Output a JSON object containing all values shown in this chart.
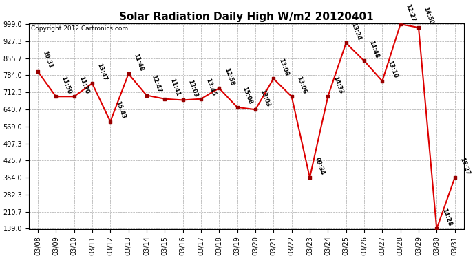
{
  "title": "Solar Radiation Daily High W/m2 20120401",
  "copyright": "Copyright 2012 Cartronics.com",
  "dates": [
    "03/08",
    "03/09",
    "03/10",
    "03/11",
    "03/12",
    "03/13",
    "03/14",
    "03/15",
    "03/16",
    "03/17",
    "03/18",
    "03/19",
    "03/20",
    "03/21",
    "03/22",
    "03/23",
    "03/24",
    "03/25",
    "03/26",
    "03/27",
    "03/28",
    "03/29",
    "03/30",
    "03/31"
  ],
  "values": [
    800,
    695,
    695,
    750,
    590,
    790,
    700,
    685,
    680,
    685,
    730,
    650,
    640,
    770,
    695,
    354,
    695,
    920,
    845,
    760,
    999,
    985,
    139,
    354
  ],
  "labels": [
    "10:31",
    "11:50",
    "11:30",
    "13:47",
    "15:43",
    "11:48",
    "12:47",
    "11:41",
    "13:03",
    "13:45",
    "12:58",
    "15:08",
    "13:03",
    "13:08",
    "13:06",
    "09:34",
    "14:33",
    "13:24",
    "14:48",
    "13:10",
    "12:27",
    "14:50",
    "14:28",
    "15:27"
  ],
  "line_color": "#dd0000",
  "marker_color": "#990000",
  "bg_color": "#ffffff",
  "plot_bg_color": "#ffffff",
  "grid_color": "#aaaaaa",
  "title_color": "#000000",
  "copyright_color": "#000000",
  "ymin": 139.0,
  "ymax": 999.0,
  "yticks": [
    139.0,
    210.7,
    282.3,
    354.0,
    425.7,
    497.3,
    569.0,
    640.7,
    712.3,
    784.0,
    855.7,
    927.3,
    999.0
  ],
  "title_fontsize": 11,
  "label_fontsize": 6.0,
  "tick_fontsize": 7.0,
  "copyright_fontsize": 6.5
}
